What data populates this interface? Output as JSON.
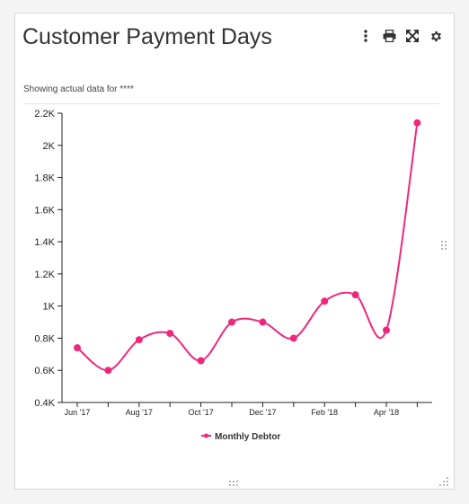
{
  "widget": {
    "title": "Customer Payment Days",
    "subtitle": "Showing actual data for ****",
    "toolbar": {
      "menu_icon": "vertical-ellipsis-icon",
      "print_icon": "printer-icon",
      "expand_icon": "expand-arrows-icon",
      "settings_icon": "gear-icon"
    }
  },
  "colors": {
    "series": "#f0277c",
    "axis": "#222222",
    "text": "#333333"
  },
  "chart_data": {
    "type": "line",
    "title": "",
    "xlabel": "",
    "ylabel": "",
    "ylim": [
      0.4,
      2.2
    ],
    "y_tick_values": [
      0.4,
      0.6,
      0.8,
      1.0,
      1.2,
      1.4,
      1.6,
      1.8,
      2.0,
      2.2
    ],
    "y_tick_labels": [
      "0.4K",
      "0.6K",
      "0.8K",
      "1K",
      "1.2K",
      "1.4K",
      "1.6K",
      "1.8K",
      "2K",
      "2.2K"
    ],
    "x": [
      "2017-06",
      "2017-07",
      "2017-08",
      "2017-09",
      "2017-10",
      "2017-11",
      "2017-12",
      "2018-01",
      "2018-02",
      "2018-03",
      "2018-04",
      "2018-05"
    ],
    "x_tick_labels": [
      "Jun '17",
      "",
      "Aug '17",
      "",
      "Oct '17",
      "",
      "Dec '17",
      "",
      "Feb '18",
      "",
      "Apr '18",
      ""
    ],
    "series": [
      {
        "name": "Monthly Debtor",
        "values": [
          0.74,
          0.6,
          0.79,
          0.83,
          0.66,
          0.9,
          0.9,
          0.8,
          1.03,
          1.07,
          0.85,
          2.14
        ]
      }
    ],
    "legend": "bottom-center",
    "grid": false,
    "smooth": true
  }
}
